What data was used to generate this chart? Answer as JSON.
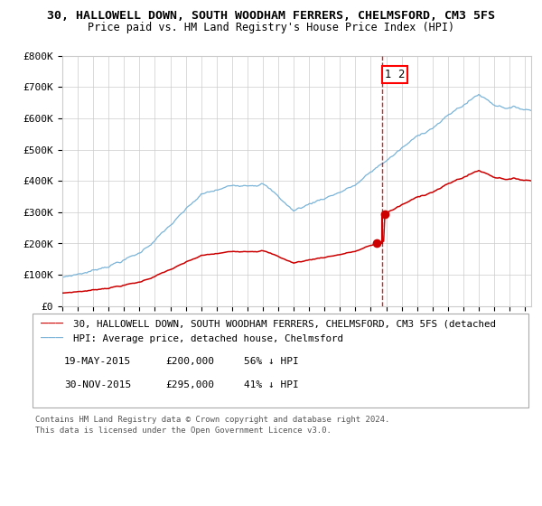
{
  "title": "30, HALLOWELL DOWN, SOUTH WOODHAM FERRERS, CHELMSFORD, CM3 5FS",
  "subtitle": "Price paid vs. HM Land Registry's House Price Index (HPI)",
  "ylim": [
    0,
    800000
  ],
  "yticks": [
    0,
    100000,
    200000,
    300000,
    400000,
    500000,
    600000,
    700000,
    800000
  ],
  "ytick_labels": [
    "£0",
    "£100K",
    "£200K",
    "£300K",
    "£400K",
    "£500K",
    "£600K",
    "£700K",
    "£800K"
  ],
  "hpi_color": "#7ab4d8",
  "price_color": "#cc0000",
  "vline_color": "#cc0000",
  "vline_x": 2015.75,
  "marker_color": "#cc0000",
  "purchase_1_date": 2015.37,
  "purchase_1_price": 200000,
  "purchase_2_date": 2015.92,
  "purchase_2_price": 295000,
  "legend_line1": "30, HALLOWELL DOWN, SOUTH WOODHAM FERRERS, CHELMSFORD, CM3 5FS (detached",
  "legend_line2": "HPI: Average price, detached house, Chelmsford",
  "table_row1": [
    "1",
    "19-MAY-2015",
    "£200,000",
    "56% ↓ HPI"
  ],
  "table_row2": [
    "2",
    "30-NOV-2015",
    "£295,000",
    "41% ↓ HPI"
  ],
  "footer1": "Contains HM Land Registry data © Crown copyright and database right 2024.",
  "footer2": "This data is licensed under the Open Government Licence v3.0.",
  "bg_color": "#ffffff",
  "grid_color": "#cccccc"
}
